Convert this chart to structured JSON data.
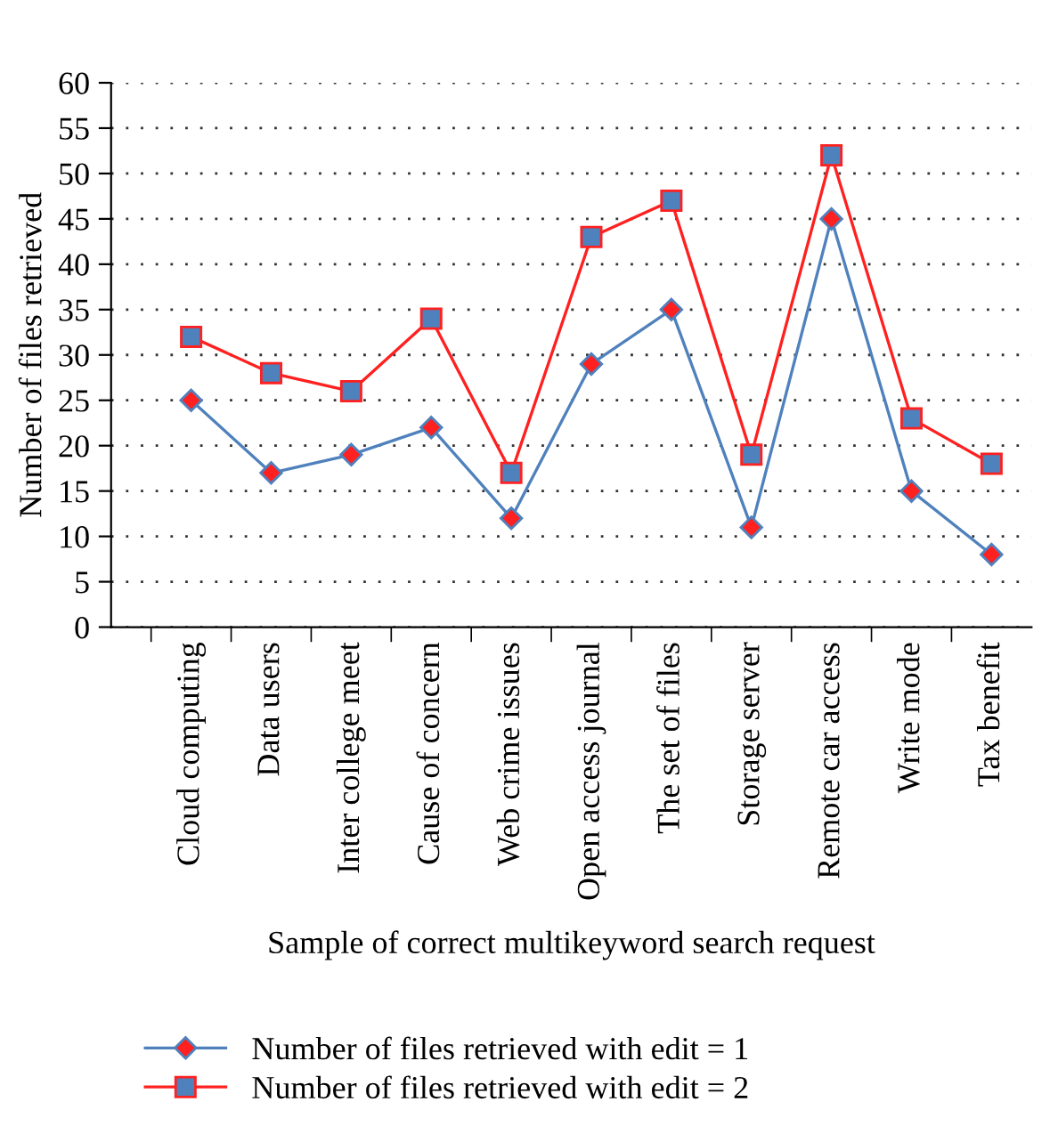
{
  "chart_data": {
    "type": "line",
    "xlabel": "Sample of correct multikeyword search request",
    "ylabel": "Number of files retrieved",
    "categories": [
      "Cloud computing",
      "Data users",
      "Inter college meet",
      "Cause of concern",
      "Web crime issues",
      "Open access journal",
      "The set of files",
      "Storage server",
      "Remote car access",
      "Write mode",
      "Tax benefit"
    ],
    "series": [
      {
        "name": "Number of files retrieved with edit = 1",
        "color": "#4f81bd",
        "marker": "diamond",
        "values": [
          25,
          17,
          19,
          22,
          12,
          29,
          35,
          11,
          45,
          15,
          8
        ]
      },
      {
        "name": "Number of files retrieved with edit = 2",
        "color": "#ff2020",
        "marker": "square",
        "values": [
          32,
          28,
          26,
          34,
          17,
          43,
          47,
          19,
          52,
          23,
          18
        ]
      }
    ],
    "ylim": [
      0,
      60
    ],
    "yticks": [
      0,
      5,
      10,
      15,
      20,
      25,
      30,
      35,
      40,
      45,
      50,
      55,
      60
    ],
    "grid": "y",
    "legend": "bottom",
    "line_style": "solid"
  }
}
